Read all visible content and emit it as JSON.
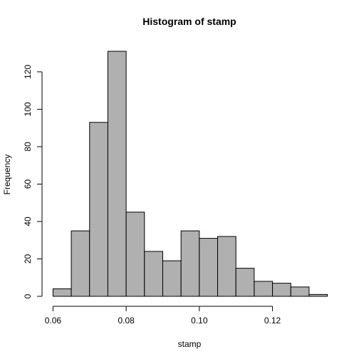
{
  "chart_data": {
    "type": "bar",
    "title": "Histogram of stamp",
    "xlabel": "stamp",
    "ylabel": "Frequency",
    "bin_edges": [
      0.06,
      0.065,
      0.07,
      0.075,
      0.08,
      0.085,
      0.09,
      0.095,
      0.1,
      0.105,
      0.11,
      0.115,
      0.12,
      0.125,
      0.13,
      0.135
    ],
    "values": [
      4,
      35,
      93,
      131,
      45,
      24,
      19,
      35,
      31,
      32,
      15,
      8,
      7,
      5,
      1
    ],
    "xlim": [
      0.06,
      0.135
    ],
    "ylim": [
      0,
      131
    ],
    "x_ticks": [
      0.06,
      0.08,
      0.1,
      0.12
    ],
    "x_tick_labels": [
      "0.06",
      "0.08",
      "0.10",
      "0.12"
    ],
    "y_ticks": [
      0,
      20,
      40,
      60,
      80,
      100,
      120
    ],
    "y_tick_labels": [
      "0",
      "20",
      "40",
      "60",
      "80",
      "100",
      "120"
    ],
    "grid": false,
    "bar_color": "#b0b0b0",
    "edge_color": "#000000"
  }
}
